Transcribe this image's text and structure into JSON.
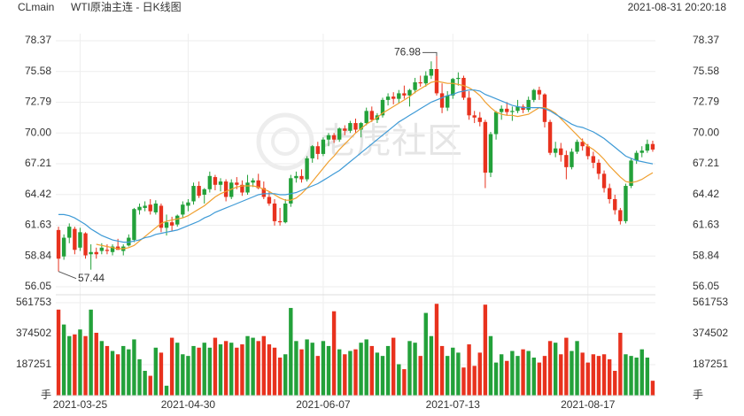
{
  "header": {
    "symbol": "CLmain",
    "title": "WTI原油主连 - 日K线图",
    "timestamp": "2021-08-31 20:20:18",
    "watermark": "老虎社区"
  },
  "chart_data": [
    {
      "type": "candlestick",
      "up_color": "#23a13a",
      "down_color": "#e8321e",
      "grid": true,
      "ylim": [
        56.05,
        78.37
      ],
      "yticks": [
        78.37,
        75.58,
        72.79,
        {
          "value": 70,
          "label": "70.00"
        },
        67.21,
        64.42,
        61.63,
        58.84,
        56.05
      ],
      "annotations": [
        76.98,
        57.44
      ],
      "open": [
        61.2,
        58.8,
        60.5,
        61.3,
        59.6,
        60.9,
        59.0,
        59.2,
        59.3,
        59.4,
        59.2,
        59.7,
        59.3,
        59.8,
        60.3,
        63.0,
        63.2,
        63.5,
        62.8,
        63.4,
        61.4,
        61.9,
        61.7,
        62.6,
        63.4,
        63.8,
        65.2,
        64.4,
        64.9,
        66.0,
        65.3,
        65.6,
        64.2,
        65.5,
        65.3,
        64.6,
        65.5,
        65.7,
        65.0,
        64.2,
        63.6,
        62.0,
        61.9,
        63.6,
        65.9,
        66.1,
        65.8,
        67.7,
        68.8,
        68.1,
        69.4,
        69.8,
        69.4,
        70.4,
        70.2,
        70.9,
        70.3,
        70.9,
        72.0,
        71.2,
        71.6,
        73.0,
        73.3,
        73.1,
        73.6,
        73.4,
        73.9,
        74.6,
        74.5,
        75.2,
        75.8,
        73.6,
        72.3,
        73.4,
        74.9,
        75.0,
        73.2,
        71.6,
        71.4,
        71.0,
        66.4,
        69.9,
        71.9,
        72.2,
        71.9,
        72.0,
        72.4,
        72.1,
        73.0,
        73.9,
        73.5,
        71.0,
        68.2,
        68.6,
        68.0,
        66.9,
        68.3,
        69.2,
        68.8,
        67.9,
        67.3,
        66.3,
        65.0,
        64.0,
        63.0,
        62.0,
        65.2,
        67.5,
        68.2,
        68.4,
        69.0
      ],
      "high": [
        61.5,
        60.8,
        61.8,
        61.5,
        61.4,
        61.0,
        59.9,
        59.6,
        60.0,
        59.9,
        59.9,
        60.4,
        59.9,
        60.8,
        63.2,
        63.6,
        63.8,
        64.0,
        63.9,
        63.6,
        62.6,
        62.4,
        62.6,
        63.8,
        64.0,
        65.5,
        65.6,
        65.0,
        66.5,
        66.2,
        65.9,
        65.8,
        65.8,
        66.0,
        65.7,
        66.2,
        65.9,
        66.3,
        65.6,
        64.7,
        64.0,
        63.2,
        64.0,
        66.2,
        66.5,
        66.7,
        67.9,
        68.9,
        69.2,
        69.6,
        70.0,
        70.0,
        70.5,
        70.7,
        71.1,
        71.3,
        71.0,
        72.3,
        72.4,
        71.8,
        73.2,
        73.6,
        73.7,
        73.9,
        74.3,
        74.0,
        75.0,
        75.2,
        75.6,
        76.5,
        76.98,
        74.5,
        73.8,
        75.0,
        75.5,
        75.2,
        73.8,
        72.0,
        71.9,
        71.2,
        70.1,
        72.0,
        72.5,
        72.8,
        72.4,
        73.0,
        72.6,
        73.3,
        74.0,
        74.2,
        73.6,
        71.2,
        69.2,
        69.1,
        68.4,
        68.6,
        69.4,
        69.5,
        69.0,
        68.3,
        67.6,
        66.6,
        65.4,
        64.4,
        63.2,
        65.4,
        67.7,
        68.4,
        68.8,
        69.4,
        69.3
      ],
      "low": [
        57.44,
        58.5,
        60.0,
        59.0,
        59.3,
        58.6,
        57.6,
        58.6,
        59.0,
        59.0,
        58.9,
        59.4,
        58.9,
        59.7,
        60.1,
        62.6,
        62.9,
        62.6,
        62.6,
        61.0,
        60.7,
        61.1,
        61.5,
        62.3,
        62.9,
        63.5,
        64.1,
        63.6,
        64.6,
        64.8,
        64.7,
        63.8,
        64.0,
        64.9,
        64.3,
        64.4,
        65.1,
        64.9,
        64.0,
        63.4,
        61.6,
        61.6,
        61.8,
        63.3,
        65.5,
        65.5,
        65.6,
        67.3,
        67.6,
        67.9,
        68.8,
        69.1,
        69.2,
        69.8,
        70.0,
        70.0,
        69.6,
        70.7,
        71.0,
        70.9,
        71.4,
        72.5,
        72.6,
        72.7,
        73.1,
        72.4,
        73.6,
        74.2,
        74.2,
        74.9,
        73.4,
        71.8,
        72.0,
        73.1,
        74.3,
        73.0,
        71.2,
        70.9,
        70.6,
        65.0,
        66.0,
        69.4,
        71.2,
        71.6,
        71.1,
        71.8,
        71.8,
        71.9,
        72.8,
        73.0,
        70.5,
        68.0,
        67.8,
        67.4,
        65.8,
        66.7,
        68.1,
        68.4,
        67.6,
        66.8,
        65.8,
        64.6,
        63.6,
        62.6,
        61.7,
        61.8,
        65.0,
        67.2,
        67.8,
        68.2,
        68.3
      ],
      "close": [
        58.6,
        60.5,
        61.5,
        59.4,
        61.0,
        58.9,
        59.2,
        59.0,
        59.6,
        59.3,
        59.7,
        59.4,
        59.7,
        60.5,
        63.1,
        63.3,
        63.4,
        62.9,
        63.6,
        61.4,
        61.9,
        61.6,
        62.5,
        63.5,
        63.7,
        65.2,
        64.3,
        64.9,
        66.1,
        65.3,
        65.6,
        64.2,
        65.5,
        65.3,
        64.6,
        65.5,
        65.7,
        65.0,
        64.2,
        63.6,
        62.0,
        61.9,
        63.6,
        65.9,
        66.1,
        65.8,
        67.7,
        68.8,
        68.1,
        69.4,
        69.8,
        69.4,
        70.4,
        70.2,
        70.9,
        70.3,
        70.9,
        72.0,
        71.2,
        71.6,
        73.0,
        73.3,
        73.1,
        73.6,
        73.4,
        73.9,
        74.6,
        74.5,
        75.2,
        75.8,
        73.6,
        72.3,
        73.4,
        74.9,
        75.0,
        73.2,
        71.6,
        71.4,
        71.0,
        66.4,
        69.9,
        71.9,
        72.2,
        71.9,
        72.0,
        72.4,
        72.1,
        73.0,
        73.9,
        73.5,
        71.0,
        68.2,
        68.6,
        68.0,
        66.9,
        68.3,
        69.2,
        68.8,
        67.9,
        67.3,
        66.3,
        65.0,
        64.0,
        63.0,
        62.0,
        65.2,
        67.5,
        68.2,
        68.4,
        69.0,
        68.5
      ],
      "lines": [
        {
          "color": "#f0a030",
          "values": [
            null,
            null,
            null,
            null,
            null,
            null,
            null,
            59.9,
            59.8,
            59.7,
            59.6,
            59.5,
            59.5,
            59.6,
            59.8,
            60.2,
            60.6,
            61.0,
            61.4,
            61.8,
            62.0,
            62.1,
            62.2,
            62.3,
            62.5,
            62.8,
            63.1,
            63.4,
            63.8,
            64.2,
            64.5,
            64.7,
            64.9,
            65.1,
            65.2,
            65.2,
            65.2,
            65.1,
            64.9,
            64.7,
            64.4,
            64.1,
            63.9,
            63.9,
            64.1,
            64.5,
            65.0,
            65.6,
            66.2,
            66.8,
            67.4,
            67.9,
            68.5,
            69.0,
            69.5,
            70.0,
            70.4,
            70.8,
            71.1,
            71.4,
            71.8,
            72.1,
            72.4,
            72.7,
            73.0,
            73.3,
            73.7,
            74.0,
            74.3,
            74.6,
            74.7,
            74.6,
            74.5,
            74.5,
            74.4,
            74.3,
            74.1,
            73.8,
            73.4,
            72.8,
            72.3,
            71.9,
            71.7,
            71.6,
            71.6,
            71.5,
            71.6,
            71.7,
            72.0,
            72.3,
            72.3,
            72.1,
            71.8,
            71.3,
            70.8,
            70.3,
            69.8,
            69.3,
            68.8,
            68.5,
            68.1,
            67.6,
            67.0,
            66.5,
            66.0,
            65.6,
            65.5,
            65.6,
            65.8,
            66.1,
            66.4
          ]
        },
        {
          "color": "#3e9ad6",
          "values": [
            62.6,
            62.6,
            62.5,
            62.3,
            62.0,
            61.7,
            61.3,
            61.0,
            60.7,
            60.5,
            60.3,
            60.2,
            60.1,
            60.1,
            60.2,
            60.3,
            60.5,
            60.6,
            60.8,
            60.9,
            61.0,
            61.1,
            61.2,
            61.4,
            61.6,
            61.8,
            62.0,
            62.3,
            62.5,
            62.8,
            63.0,
            63.2,
            63.4,
            63.6,
            63.8,
            64.0,
            64.2,
            64.4,
            64.5,
            64.5,
            64.5,
            64.4,
            64.4,
            64.5,
            64.6,
            64.8,
            65.0,
            65.2,
            65.4,
            65.7,
            66.0,
            66.3,
            66.6,
            67.0,
            67.4,
            67.8,
            68.2,
            68.6,
            69.0,
            69.4,
            69.8,
            70.2,
            70.6,
            71.0,
            71.3,
            71.6,
            71.9,
            72.2,
            72.5,
            72.8,
            73.0,
            73.2,
            73.4,
            73.5,
            73.7,
            73.8,
            73.9,
            73.9,
            73.8,
            73.5,
            73.3,
            73.1,
            72.9,
            72.7,
            72.5,
            72.4,
            72.3,
            72.3,
            72.3,
            72.3,
            72.2,
            72.0,
            71.7,
            71.4,
            71.1,
            70.8,
            70.6,
            70.5,
            70.3,
            70.1,
            69.8,
            69.5,
            69.1,
            68.7,
            68.3,
            67.9,
            67.7,
            67.5,
            67.4,
            67.3,
            67.2
          ]
        }
      ]
    },
    {
      "type": "bar",
      "grid": true,
      "ylim": [
        0,
        561753
      ],
      "yticks": [
        {
          "value": 0,
          "label": "手"
        },
        187251,
        374502,
        561753
      ],
      "categories": [
        null,
        null,
        null,
        null,
        "2021-03-25",
        null,
        null,
        null,
        null,
        null,
        null,
        null,
        null,
        null,
        null,
        null,
        null,
        null,
        null,
        null,
        null,
        null,
        null,
        null,
        "2021-04-30",
        null,
        null,
        null,
        null,
        null,
        null,
        null,
        null,
        null,
        null,
        null,
        null,
        null,
        null,
        null,
        null,
        null,
        null,
        null,
        null,
        null,
        null,
        null,
        null,
        "2021-06-07",
        null,
        null,
        null,
        null,
        null,
        null,
        null,
        null,
        null,
        null,
        null,
        null,
        null,
        null,
        null,
        null,
        null,
        null,
        null,
        null,
        null,
        null,
        null,
        "2021-07-13",
        null,
        null,
        null,
        null,
        null,
        null,
        null,
        null,
        null,
        null,
        null,
        null,
        null,
        null,
        null,
        null,
        null,
        null,
        null,
        null,
        null,
        null,
        null,
        null,
        "2021-08-17",
        null,
        null,
        null,
        null,
        null,
        null,
        null,
        null,
        null,
        null,
        null,
        null
      ],
      "values": [
        520000,
        430000,
        360000,
        370000,
        400000,
        360000,
        520000,
        380000,
        330000,
        300000,
        270000,
        250000,
        300000,
        280000,
        340000,
        220000,
        150000,
        120000,
        290000,
        260000,
        60000,
        350000,
        320000,
        250000,
        240000,
        300000,
        290000,
        320000,
        290000,
        350000,
        310000,
        330000,
        320000,
        290000,
        310000,
        360000,
        350000,
        330000,
        360000,
        310000,
        290000,
        230000,
        250000,
        530000,
        330000,
        280000,
        340000,
        320000,
        240000,
        330000,
        300000,
        510000,
        280000,
        250000,
        270000,
        280000,
        320000,
        340000,
        300000,
        260000,
        240000,
        300000,
        350000,
        190000,
        160000,
        330000,
        320000,
        240000,
        500000,
        360000,
        555000,
        300000,
        240000,
        290000,
        260000,
        170000,
        310000,
        180000,
        260000,
        550000,
        360000,
        200000,
        250000,
        210000,
        270000,
        240000,
        280000,
        270000,
        230000,
        200000,
        240000,
        330000,
        320000,
        250000,
        350000,
        270000,
        330000,
        260000,
        200000,
        250000,
        240000,
        250000,
        220000,
        150000,
        380000,
        250000,
        240000,
        230000,
        280000,
        230000,
        90000
      ]
    }
  ]
}
